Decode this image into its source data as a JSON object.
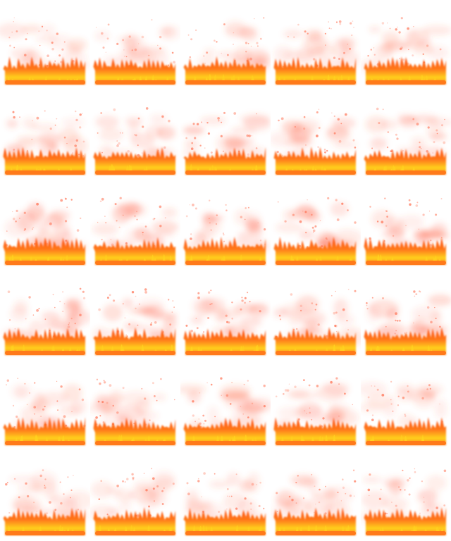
{
  "sprite_sheet": {
    "columns": 5,
    "rows": 6,
    "frame_count": 30,
    "background": "#ffffff",
    "colors": {
      "flame_base": "#ff7a1a",
      "flame_core": "#ffd21f",
      "flame_edge": "#ff4a12",
      "smoke": "#ff5a3c",
      "ember": "#ff6a4a"
    },
    "frames_per_row_smoke_level": [
      0.35,
      0.55,
      0.75,
      0.7,
      0.45,
      0.3
    ]
  }
}
